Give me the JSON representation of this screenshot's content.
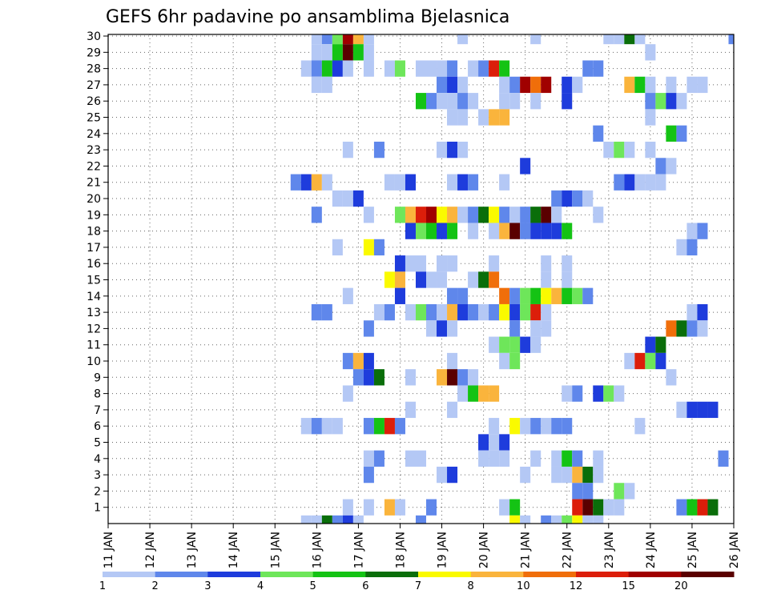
{
  "chart_data": {
    "type": "heatmap",
    "title": "GEFS 6hr padavine po ansamblima Bjelasnica",
    "x_tick_labels": [
      "11 JAN",
      "12 JAN",
      "13 JAN",
      "14 JAN",
      "15 JAN",
      "16 JAN",
      "17 JAN",
      "18 JAN",
      "19 JAN",
      "20 JAN",
      "21 JAN",
      "22 JAN",
      "23 JAN",
      "24 JAN",
      "25 JAN",
      "26 JAN"
    ],
    "y_tick_labels": [
      "1",
      "2",
      "3",
      "4",
      "5",
      "6",
      "7",
      "8",
      "9",
      "10",
      "11",
      "12",
      "13",
      "14",
      "15",
      "16",
      "17",
      "18",
      "19",
      "20",
      "21",
      "22",
      "23",
      "24",
      "25",
      "26",
      "27",
      "28",
      "29",
      "30"
    ],
    "y_range": [
      0,
      30
    ],
    "time_steps_per_day": 4,
    "n_steps": 61,
    "grid": "dotted",
    "colorbar": {
      "position": "bottom",
      "labels": [
        "1",
        "2",
        "3",
        "4",
        "5",
        "6",
        "7",
        "8",
        "10",
        "12",
        "15",
        "20"
      ],
      "colors": [
        "#b4c8f5",
        "#5f87eb",
        "#1e3cdc",
        "#6ee65a",
        "#14c314",
        "#0a6e0a",
        "#fafa00",
        "#fab43c",
        "#f06e0a",
        "#dc1e0a",
        "#a00000",
        "#5a0000"
      ]
    },
    "cells": [
      [
        30,
        20,
        1
      ],
      [
        30,
        21,
        2
      ],
      [
        30,
        22,
        4
      ],
      [
        30,
        23,
        11
      ],
      [
        30,
        24,
        8
      ],
      [
        30,
        25,
        1
      ],
      [
        30,
        34,
        1
      ],
      [
        30,
        41,
        1
      ],
      [
        30,
        48,
        1
      ],
      [
        30,
        49,
        1
      ],
      [
        30,
        50,
        6
      ],
      [
        30,
        51,
        1
      ],
      [
        30,
        60,
        2
      ],
      [
        29,
        20,
        1
      ],
      [
        29,
        21,
        1
      ],
      [
        29,
        22,
        5
      ],
      [
        29,
        23,
        12
      ],
      [
        29,
        24,
        5
      ],
      [
        29,
        25,
        1
      ],
      [
        29,
        52,
        1
      ],
      [
        28,
        19,
        1
      ],
      [
        28,
        20,
        2
      ],
      [
        28,
        21,
        5
      ],
      [
        28,
        22,
        3
      ],
      [
        28,
        23,
        1
      ],
      [
        28,
        25,
        1
      ],
      [
        28,
        27,
        1
      ],
      [
        28,
        28,
        4
      ],
      [
        28,
        30,
        1
      ],
      [
        28,
        31,
        1
      ],
      [
        28,
        32,
        1
      ],
      [
        28,
        33,
        2
      ],
      [
        28,
        35,
        1
      ],
      [
        28,
        36,
        2
      ],
      [
        28,
        37,
        10
      ],
      [
        28,
        38,
        5
      ],
      [
        28,
        46,
        2
      ],
      [
        28,
        47,
        2
      ],
      [
        27,
        20,
        1
      ],
      [
        27,
        21,
        1
      ],
      [
        27,
        32,
        2
      ],
      [
        27,
        33,
        3
      ],
      [
        27,
        34,
        1
      ],
      [
        27,
        38,
        1
      ],
      [
        27,
        39,
        2
      ],
      [
        27,
        40,
        11
      ],
      [
        27,
        41,
        9
      ],
      [
        27,
        42,
        11
      ],
      [
        27,
        44,
        3
      ],
      [
        27,
        45,
        1
      ],
      [
        27,
        50,
        8
      ],
      [
        27,
        51,
        5
      ],
      [
        27,
        52,
        1
      ],
      [
        27,
        54,
        1
      ],
      [
        27,
        56,
        1
      ],
      [
        27,
        57,
        1
      ],
      [
        26,
        30,
        5
      ],
      [
        26,
        31,
        2
      ],
      [
        26,
        32,
        1
      ],
      [
        26,
        33,
        1
      ],
      [
        26,
        34,
        2
      ],
      [
        26,
        35,
        1
      ],
      [
        26,
        38,
        1
      ],
      [
        26,
        39,
        1
      ],
      [
        26,
        41,
        1
      ],
      [
        26,
        44,
        3
      ],
      [
        26,
        52,
        2
      ],
      [
        26,
        53,
        4
      ],
      [
        26,
        54,
        3
      ],
      [
        26,
        55,
        1
      ],
      [
        25,
        33,
        1
      ],
      [
        25,
        34,
        1
      ],
      [
        25,
        36,
        1
      ],
      [
        25,
        37,
        8
      ],
      [
        25,
        38,
        8
      ],
      [
        25,
        52,
        1
      ],
      [
        24,
        47,
        2
      ],
      [
        24,
        54,
        5
      ],
      [
        24,
        55,
        2
      ],
      [
        23,
        23,
        1
      ],
      [
        23,
        26,
        2
      ],
      [
        23,
        32,
        1
      ],
      [
        23,
        33,
        3
      ],
      [
        23,
        34,
        1
      ],
      [
        23,
        48,
        1
      ],
      [
        23,
        49,
        4
      ],
      [
        23,
        50,
        1
      ],
      [
        23,
        52,
        1
      ],
      [
        22,
        40,
        3
      ],
      [
        22,
        53,
        2
      ],
      [
        22,
        54,
        1
      ],
      [
        21,
        18,
        2
      ],
      [
        21,
        19,
        3
      ],
      [
        21,
        20,
        8
      ],
      [
        21,
        21,
        1
      ],
      [
        21,
        27,
        1
      ],
      [
        21,
        28,
        1
      ],
      [
        21,
        29,
        3
      ],
      [
        21,
        33,
        1
      ],
      [
        21,
        34,
        3
      ],
      [
        21,
        35,
        2
      ],
      [
        21,
        38,
        1
      ],
      [
        21,
        49,
        2
      ],
      [
        21,
        50,
        3
      ],
      [
        21,
        51,
        1
      ],
      [
        21,
        52,
        1
      ],
      [
        21,
        53,
        1
      ],
      [
        20,
        22,
        1
      ],
      [
        20,
        23,
        1
      ],
      [
        20,
        24,
        3
      ],
      [
        20,
        43,
        2
      ],
      [
        20,
        44,
        3
      ],
      [
        20,
        45,
        2
      ],
      [
        20,
        46,
        1
      ],
      [
        19,
        20,
        2
      ],
      [
        19,
        25,
        1
      ],
      [
        19,
        28,
        4
      ],
      [
        19,
        29,
        8
      ],
      [
        19,
        30,
        10
      ],
      [
        19,
        31,
        11
      ],
      [
        19,
        32,
        7
      ],
      [
        19,
        33,
        8
      ],
      [
        19,
        34,
        1
      ],
      [
        19,
        35,
        2
      ],
      [
        19,
        36,
        6
      ],
      [
        19,
        37,
        7
      ],
      [
        19,
        38,
        2
      ],
      [
        19,
        39,
        1
      ],
      [
        19,
        40,
        2
      ],
      [
        19,
        41,
        6
      ],
      [
        19,
        42,
        12
      ],
      [
        19,
        43,
        1
      ],
      [
        19,
        47,
        1
      ],
      [
        18,
        29,
        3
      ],
      [
        18,
        30,
        4
      ],
      [
        18,
        31,
        5
      ],
      [
        18,
        32,
        3
      ],
      [
        18,
        33,
        5
      ],
      [
        18,
        35,
        1
      ],
      [
        18,
        37,
        1
      ],
      [
        18,
        38,
        8
      ],
      [
        18,
        39,
        12
      ],
      [
        18,
        40,
        2
      ],
      [
        18,
        41,
        3
      ],
      [
        18,
        42,
        3
      ],
      [
        18,
        43,
        3
      ],
      [
        18,
        44,
        5
      ],
      [
        18,
        56,
        1
      ],
      [
        18,
        57,
        2
      ],
      [
        17,
        22,
        1
      ],
      [
        17,
        25,
        7
      ],
      [
        17,
        26,
        2
      ],
      [
        17,
        55,
        1
      ],
      [
        17,
        56,
        2
      ],
      [
        16,
        28,
        3
      ],
      [
        16,
        29,
        1
      ],
      [
        16,
        30,
        1
      ],
      [
        16,
        32,
        1
      ],
      [
        16,
        33,
        1
      ],
      [
        16,
        37,
        1
      ],
      [
        16,
        42,
        1
      ],
      [
        16,
        44,
        1
      ],
      [
        15,
        27,
        7
      ],
      [
        15,
        28,
        8
      ],
      [
        15,
        30,
        3
      ],
      [
        15,
        31,
        1
      ],
      [
        15,
        32,
        1
      ],
      [
        15,
        35,
        1
      ],
      [
        15,
        36,
        6
      ],
      [
        15,
        37,
        9
      ],
      [
        15,
        42,
        1
      ],
      [
        15,
        44,
        1
      ],
      [
        14,
        23,
        1
      ],
      [
        14,
        28,
        3
      ],
      [
        14,
        33,
        2
      ],
      [
        14,
        34,
        2
      ],
      [
        14,
        38,
        9
      ],
      [
        14,
        39,
        2
      ],
      [
        14,
        40,
        4
      ],
      [
        14,
        41,
        5
      ],
      [
        14,
        42,
        7
      ],
      [
        14,
        43,
        8
      ],
      [
        14,
        44,
        5
      ],
      [
        14,
        45,
        4
      ],
      [
        14,
        46,
        2
      ],
      [
        13,
        20,
        2
      ],
      [
        13,
        21,
        2
      ],
      [
        13,
        26,
        1
      ],
      [
        13,
        27,
        2
      ],
      [
        13,
        29,
        1
      ],
      [
        13,
        30,
        4
      ],
      [
        13,
        31,
        2
      ],
      [
        13,
        32,
        1
      ],
      [
        13,
        33,
        8
      ],
      [
        13,
        34,
        3
      ],
      [
        13,
        35,
        2
      ],
      [
        13,
        36,
        1
      ],
      [
        13,
        37,
        2
      ],
      [
        13,
        38,
        7
      ],
      [
        13,
        39,
        3
      ],
      [
        13,
        40,
        4
      ],
      [
        13,
        41,
        10
      ],
      [
        13,
        42,
        1
      ],
      [
        13,
        56,
        1
      ],
      [
        13,
        57,
        3
      ],
      [
        12,
        25,
        2
      ],
      [
        12,
        31,
        1
      ],
      [
        12,
        32,
        3
      ],
      [
        12,
        33,
        1
      ],
      [
        12,
        39,
        2
      ],
      [
        12,
        41,
        1
      ],
      [
        12,
        42,
        1
      ],
      [
        12,
        54,
        9
      ],
      [
        12,
        55,
        6
      ],
      [
        12,
        56,
        2
      ],
      [
        12,
        57,
        1
      ],
      [
        11,
        37,
        1
      ],
      [
        11,
        38,
        4
      ],
      [
        11,
        39,
        4
      ],
      [
        11,
        40,
        3
      ],
      [
        11,
        41,
        1
      ],
      [
        11,
        52,
        3
      ],
      [
        11,
        53,
        6
      ],
      [
        10,
        23,
        2
      ],
      [
        10,
        24,
        8
      ],
      [
        10,
        25,
        3
      ],
      [
        10,
        33,
        1
      ],
      [
        10,
        38,
        1
      ],
      [
        10,
        39,
        4
      ],
      [
        10,
        50,
        1
      ],
      [
        10,
        51,
        10
      ],
      [
        10,
        52,
        4
      ],
      [
        10,
        53,
        3
      ],
      [
        9,
        24,
        2
      ],
      [
        9,
        25,
        3
      ],
      [
        9,
        26,
        6
      ],
      [
        9,
        29,
        1
      ],
      [
        9,
        32,
        8
      ],
      [
        9,
        33,
        12
      ],
      [
        9,
        34,
        2
      ],
      [
        9,
        35,
        1
      ],
      [
        9,
        54,
        1
      ],
      [
        8,
        23,
        1
      ],
      [
        8,
        34,
        1
      ],
      [
        8,
        35,
        5
      ],
      [
        8,
        36,
        8
      ],
      [
        8,
        37,
        8
      ],
      [
        8,
        44,
        1
      ],
      [
        8,
        45,
        2
      ],
      [
        8,
        47,
        3
      ],
      [
        8,
        48,
        4
      ],
      [
        8,
        49,
        1
      ],
      [
        7,
        29,
        1
      ],
      [
        7,
        33,
        1
      ],
      [
        7,
        55,
        1
      ],
      [
        7,
        56,
        3
      ],
      [
        7,
        57,
        3
      ],
      [
        7,
        58,
        3
      ],
      [
        6,
        19,
        1
      ],
      [
        6,
        20,
        2
      ],
      [
        6,
        21,
        1
      ],
      [
        6,
        22,
        1
      ],
      [
        6,
        25,
        2
      ],
      [
        6,
        26,
        5
      ],
      [
        6,
        27,
        10
      ],
      [
        6,
        28,
        2
      ],
      [
        6,
        37,
        1
      ],
      [
        6,
        39,
        7
      ],
      [
        6,
        40,
        1
      ],
      [
        6,
        41,
        2
      ],
      [
        6,
        42,
        1
      ],
      [
        6,
        43,
        2
      ],
      [
        6,
        44,
        2
      ],
      [
        6,
        51,
        1
      ],
      [
        5,
        36,
        3
      ],
      [
        5,
        37,
        1
      ],
      [
        5,
        38,
        3
      ],
      [
        4,
        25,
        1
      ],
      [
        4,
        26,
        2
      ],
      [
        4,
        29,
        1
      ],
      [
        4,
        30,
        1
      ],
      [
        4,
        36,
        1
      ],
      [
        4,
        37,
        1
      ],
      [
        4,
        38,
        1
      ],
      [
        4,
        41,
        1
      ],
      [
        4,
        43,
        1
      ],
      [
        4,
        44,
        5
      ],
      [
        4,
        45,
        2
      ],
      [
        4,
        47,
        1
      ],
      [
        4,
        59,
        2
      ],
      [
        3,
        25,
        2
      ],
      [
        3,
        32,
        1
      ],
      [
        3,
        33,
        3
      ],
      [
        3,
        40,
        1
      ],
      [
        3,
        43,
        1
      ],
      [
        3,
        44,
        1
      ],
      [
        3,
        45,
        8
      ],
      [
        3,
        46,
        6
      ],
      [
        3,
        47,
        1
      ],
      [
        2,
        45,
        2
      ],
      [
        2,
        46,
        2
      ],
      [
        2,
        49,
        4
      ],
      [
        2,
        50,
        1
      ],
      [
        1,
        23,
        1
      ],
      [
        1,
        25,
        1
      ],
      [
        1,
        27,
        8
      ],
      [
        1,
        28,
        1
      ],
      [
        1,
        31,
        2
      ],
      [
        1,
        38,
        1
      ],
      [
        1,
        39,
        5
      ],
      [
        1,
        45,
        10
      ],
      [
        1,
        46,
        12
      ],
      [
        1,
        47,
        6
      ],
      [
        1,
        48,
        1
      ],
      [
        1,
        49,
        1
      ],
      [
        1,
        55,
        2
      ],
      [
        1,
        56,
        5
      ],
      [
        1,
        57,
        10
      ],
      [
        1,
        58,
        6
      ],
      [
        0,
        19,
        1
      ],
      [
        0,
        20,
        1
      ],
      [
        0,
        21,
        6
      ],
      [
        0,
        22,
        2
      ],
      [
        0,
        23,
        3
      ],
      [
        0,
        24,
        1
      ],
      [
        0,
        30,
        2
      ],
      [
        0,
        39,
        7
      ],
      [
        0,
        40,
        1
      ],
      [
        0,
        42,
        2
      ],
      [
        0,
        43,
        1
      ],
      [
        0,
        44,
        4
      ],
      [
        0,
        45,
        7
      ],
      [
        0,
        46,
        1
      ],
      [
        0,
        47,
        1
      ]
    ]
  }
}
